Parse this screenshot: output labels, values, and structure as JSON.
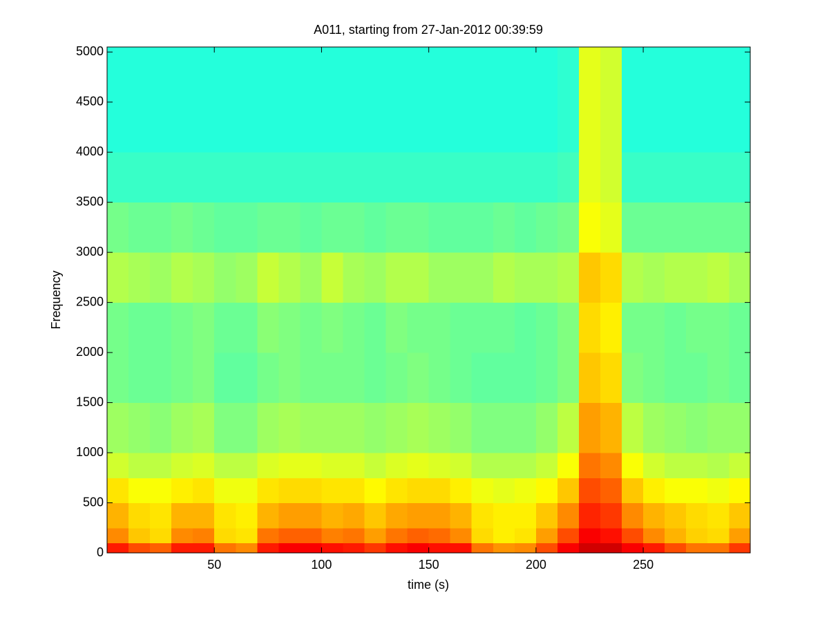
{
  "chart_data": {
    "type": "spectrogram",
    "title": "A011, starting from 27-Jan-2012 00:39:59",
    "x_label": "time (s)",
    "y_label": "Frequency",
    "colormap": "jet",
    "xlim": [
      0,
      299.9
    ],
    "ylim": [
      0,
      5050
    ],
    "xticks": [
      50,
      100,
      150,
      200,
      250
    ],
    "yticks": [
      0,
      500,
      1000,
      1500,
      2000,
      2500,
      3000,
      3500,
      4000,
      4500,
      5000
    ],
    "xbins": [
      0,
      10,
      20,
      30,
      40,
      50,
      60,
      70,
      80,
      90,
      100,
      110,
      120,
      130,
      140,
      150,
      160,
      170,
      180,
      190,
      200,
      210,
      220,
      230,
      240,
      250,
      260,
      270,
      280,
      290,
      299.9
    ],
    "ybins": [
      0,
      100,
      250,
      500,
      750,
      1000,
      1500,
      2000,
      2500,
      3000,
      3500,
      4000,
      5050
    ],
    "z": [
      [
        0.85,
        0.8,
        0.78,
        0.85,
        0.85,
        0.76,
        0.74,
        0.85,
        0.88,
        0.88,
        0.86,
        0.85,
        0.82,
        0.86,
        0.88,
        0.86,
        0.86,
        0.76,
        0.73,
        0.74,
        0.8,
        0.88,
        0.92,
        0.92,
        0.88,
        0.85,
        0.8,
        0.76,
        0.76,
        0.82
      ],
      [
        0.74,
        0.68,
        0.66,
        0.74,
        0.75,
        0.66,
        0.65,
        0.76,
        0.78,
        0.78,
        0.75,
        0.76,
        0.72,
        0.76,
        0.78,
        0.77,
        0.74,
        0.66,
        0.64,
        0.65,
        0.72,
        0.8,
        0.88,
        0.86,
        0.8,
        0.74,
        0.7,
        0.67,
        0.66,
        0.72
      ],
      [
        0.7,
        0.66,
        0.65,
        0.7,
        0.7,
        0.65,
        0.64,
        0.7,
        0.72,
        0.72,
        0.7,
        0.71,
        0.68,
        0.71,
        0.72,
        0.72,
        0.7,
        0.65,
        0.64,
        0.64,
        0.68,
        0.74,
        0.84,
        0.82,
        0.74,
        0.7,
        0.68,
        0.66,
        0.65,
        0.68
      ],
      [
        0.65,
        0.62,
        0.62,
        0.64,
        0.65,
        0.61,
        0.61,
        0.65,
        0.66,
        0.66,
        0.65,
        0.65,
        0.63,
        0.65,
        0.66,
        0.66,
        0.64,
        0.61,
        0.6,
        0.61,
        0.63,
        0.68,
        0.8,
        0.78,
        0.68,
        0.64,
        0.62,
        0.62,
        0.61,
        0.63
      ],
      [
        0.58,
        0.56,
        0.56,
        0.58,
        0.59,
        0.56,
        0.56,
        0.59,
        0.6,
        0.6,
        0.59,
        0.59,
        0.57,
        0.59,
        0.6,
        0.59,
        0.58,
        0.55,
        0.55,
        0.55,
        0.57,
        0.62,
        0.76,
        0.74,
        0.62,
        0.58,
        0.56,
        0.56,
        0.55,
        0.57
      ],
      [
        0.53,
        0.52,
        0.51,
        0.53,
        0.54,
        0.5,
        0.5,
        0.53,
        0.54,
        0.53,
        0.53,
        0.53,
        0.52,
        0.53,
        0.54,
        0.53,
        0.52,
        0.5,
        0.5,
        0.5,
        0.52,
        0.56,
        0.72,
        0.7,
        0.56,
        0.53,
        0.52,
        0.51,
        0.52,
        0.52
      ],
      [
        0.49,
        0.48,
        0.48,
        0.49,
        0.5,
        0.47,
        0.47,
        0.49,
        0.5,
        0.49,
        0.49,
        0.49,
        0.48,
        0.49,
        0.5,
        0.49,
        0.48,
        0.47,
        0.47,
        0.47,
        0.48,
        0.5,
        0.68,
        0.66,
        0.5,
        0.49,
        0.48,
        0.48,
        0.49,
        0.48
      ],
      [
        0.49,
        0.48,
        0.48,
        0.49,
        0.5,
        0.48,
        0.48,
        0.51,
        0.5,
        0.49,
        0.5,
        0.49,
        0.48,
        0.5,
        0.49,
        0.49,
        0.48,
        0.48,
        0.48,
        0.47,
        0.48,
        0.5,
        0.66,
        0.64,
        0.49,
        0.49,
        0.48,
        0.49,
        0.49,
        0.48
      ],
      [
        0.55,
        0.54,
        0.53,
        0.55,
        0.54,
        0.52,
        0.53,
        0.57,
        0.55,
        0.53,
        0.57,
        0.54,
        0.53,
        0.55,
        0.55,
        0.53,
        0.53,
        0.53,
        0.55,
        0.54,
        0.54,
        0.55,
        0.68,
        0.66,
        0.55,
        0.54,
        0.55,
        0.55,
        0.56,
        0.54
      ],
      [
        0.49,
        0.48,
        0.48,
        0.49,
        0.48,
        0.47,
        0.47,
        0.48,
        0.48,
        0.47,
        0.48,
        0.48,
        0.47,
        0.48,
        0.48,
        0.47,
        0.47,
        0.47,
        0.48,
        0.47,
        0.48,
        0.49,
        0.62,
        0.6,
        0.48,
        0.48,
        0.48,
        0.48,
        0.48,
        0.48
      ],
      [
        0.43,
        0.43,
        0.43,
        0.43,
        0.43,
        0.43,
        0.43,
        0.43,
        0.43,
        0.43,
        0.43,
        0.43,
        0.43,
        0.43,
        0.43,
        0.43,
        0.43,
        0.43,
        0.43,
        0.43,
        0.43,
        0.44,
        0.6,
        0.58,
        0.43,
        0.43,
        0.43,
        0.43,
        0.43,
        0.43
      ],
      [
        0.41,
        0.41,
        0.41,
        0.41,
        0.41,
        0.41,
        0.41,
        0.41,
        0.41,
        0.41,
        0.41,
        0.41,
        0.41,
        0.41,
        0.41,
        0.41,
        0.41,
        0.41,
        0.41,
        0.41,
        0.41,
        0.42,
        0.6,
        0.58,
        0.41,
        0.41,
        0.41,
        0.41,
        0.41,
        0.41
      ]
    ]
  }
}
